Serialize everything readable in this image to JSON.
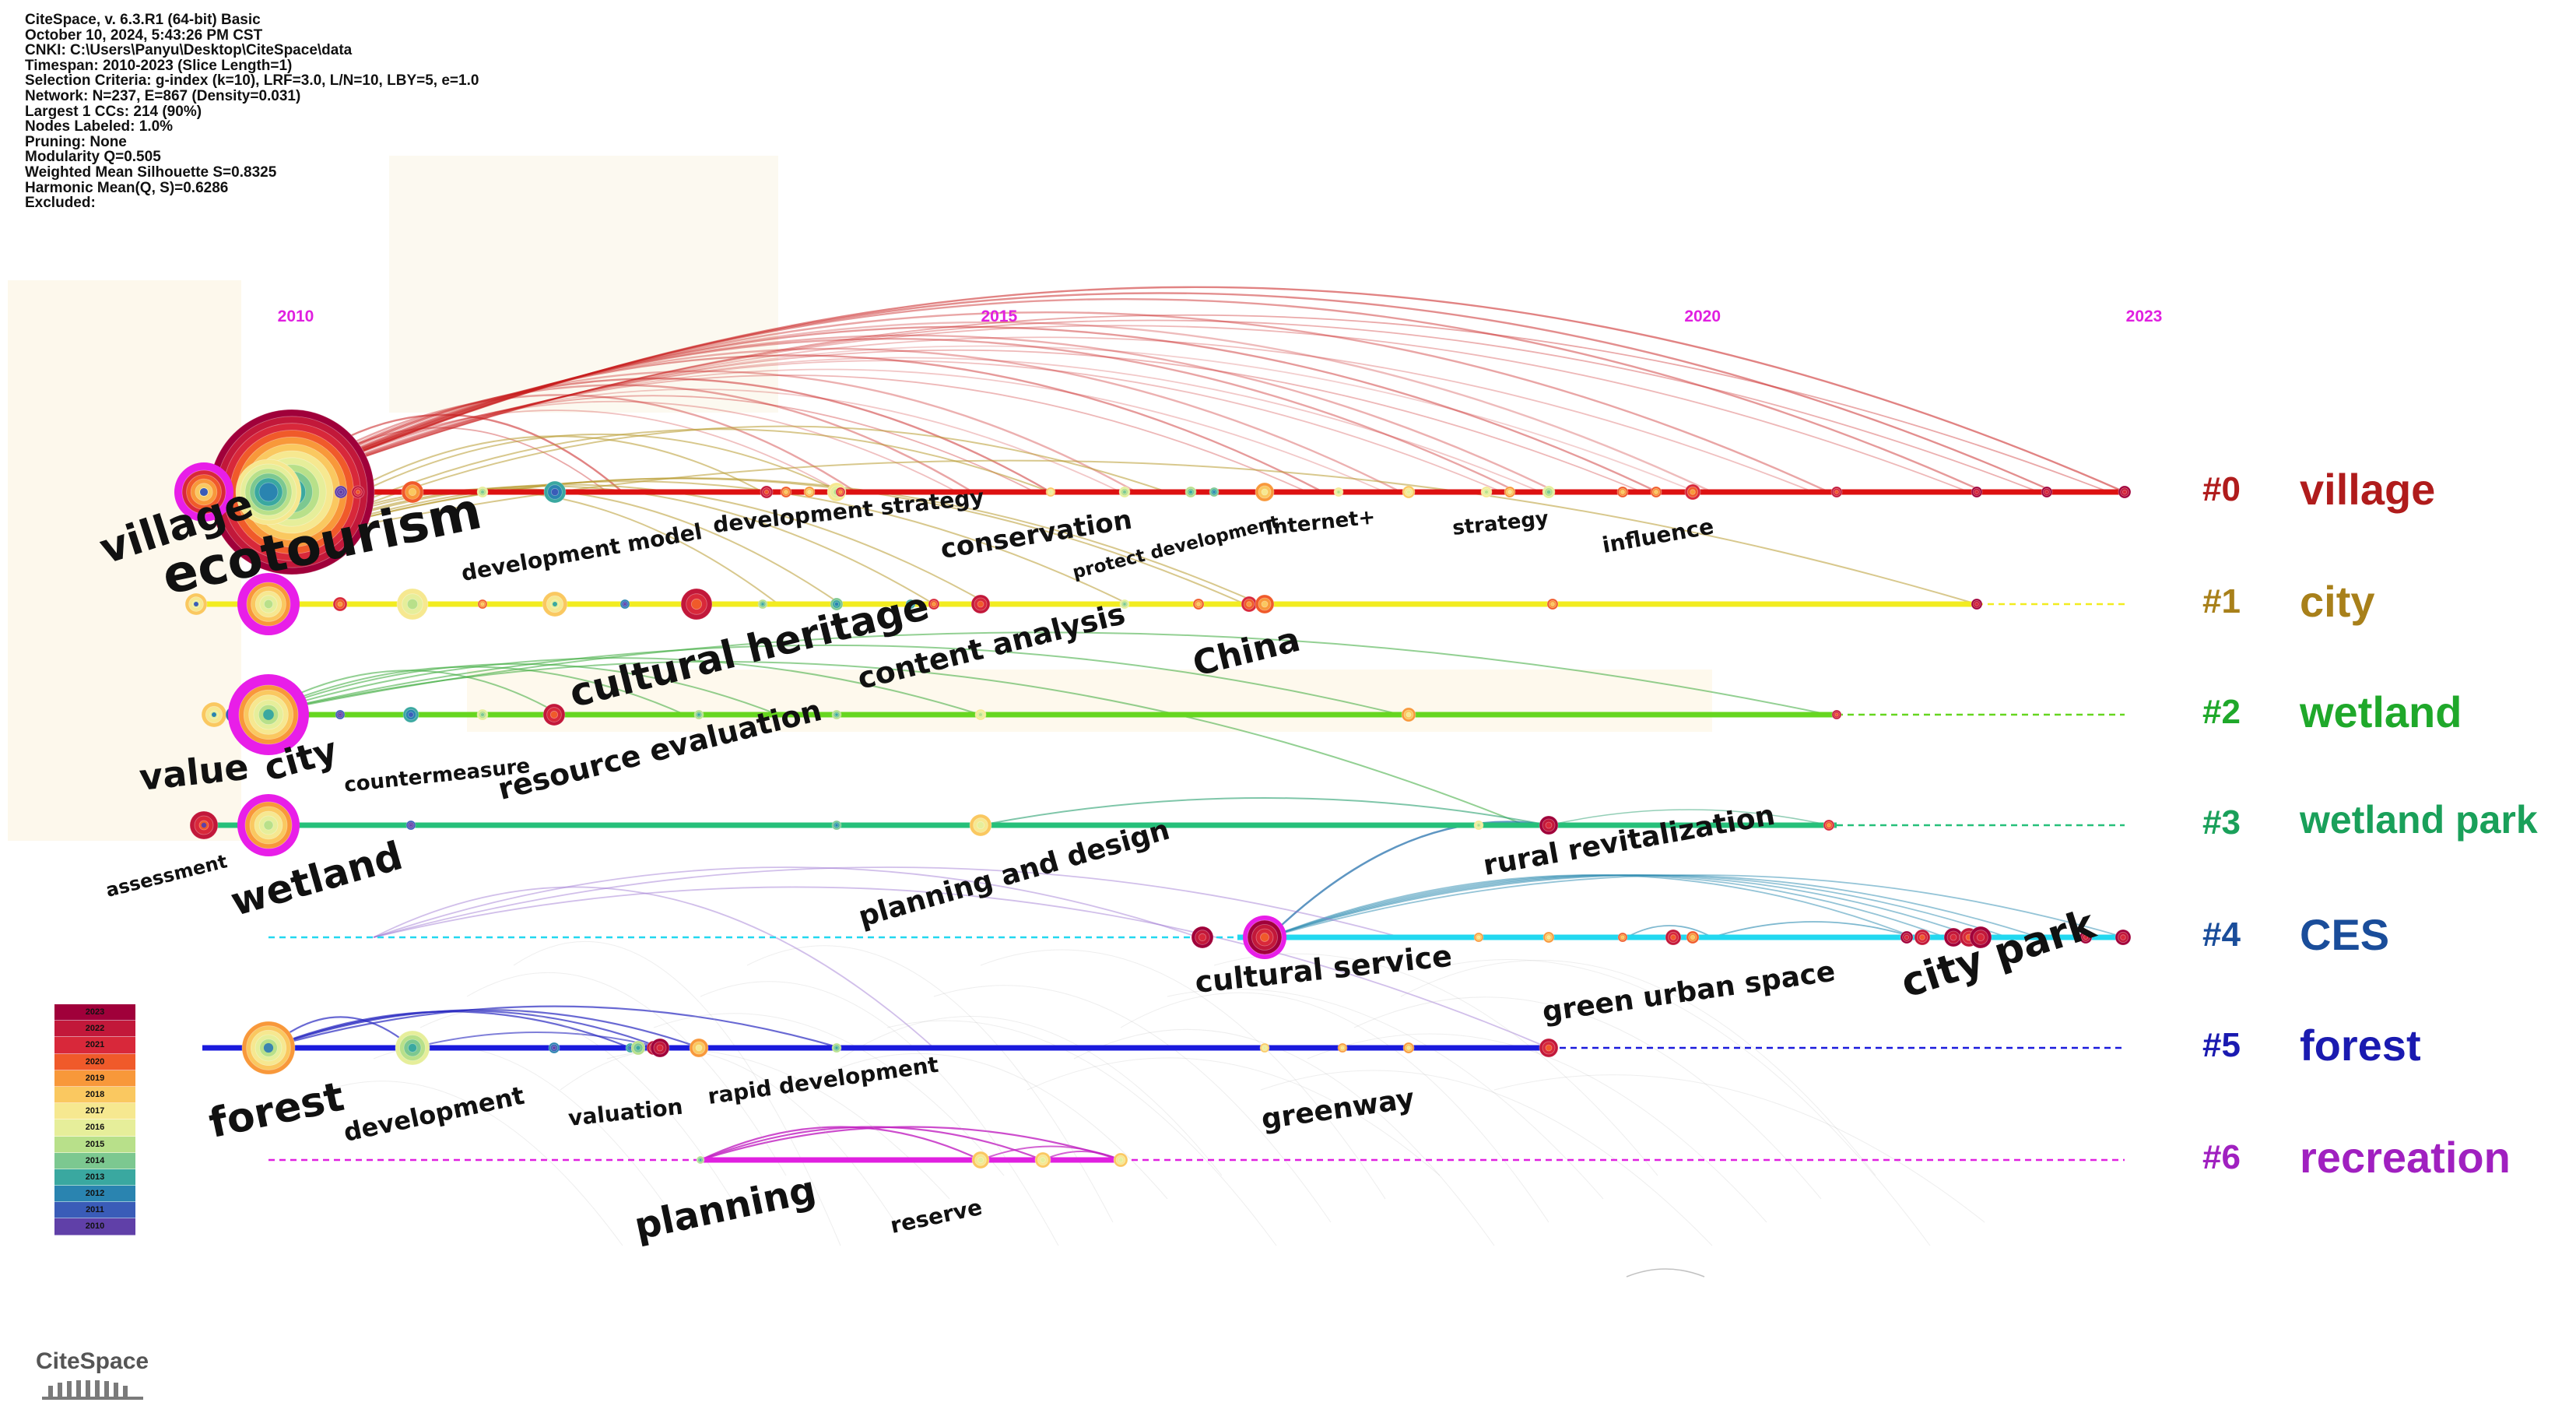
{
  "info_lines": [
    "CiteSpace, v. 6.3.R1 (64-bit) Basic",
    "October 10, 2024, 5:43:26 PM CST",
    "CNKI: C:\\Users\\Panyu\\Desktop\\CiteSpace\\data",
    "Timespan: 2010-2023 (Slice Length=1)",
    "Selection Criteria: g-index (k=10), LRF=3.0, L/N=10, LBY=5, e=1.0",
    "Network: N=237, E=867 (Density=0.031)",
    "Largest 1 CCs: 214 (90%)",
    "Nodes Labeled: 1.0%",
    "Pruning: None",
    "Modularity Q=0.505",
    "Weighted Mean Silhouette S=0.8325",
    "Harmonic Mean(Q, S)=0.6286",
    "Excluded:"
  ],
  "year_labels": [
    "2010",
    "2015",
    "2020",
    "2023"
  ],
  "clusters": [
    {
      "id": "#0",
      "name": "village",
      "color": "#b01c1c",
      "line": "#dd1111"
    },
    {
      "id": "#1",
      "name": "city",
      "color": "#a8801a",
      "line": "#f2ec20"
    },
    {
      "id": "#2",
      "name": "wetland",
      "color": "#1fa82a",
      "line": "#66d620"
    },
    {
      "id": "#3",
      "name": "wetland park",
      "color": "#1aa05a",
      "line": "#26c07a"
    },
    {
      "id": "#4",
      "name": "CES",
      "color": "#1a4d9a",
      "line": "#22d8f0"
    },
    {
      "id": "#5",
      "name": "forest",
      "color": "#1a1ab0",
      "line": "#1a1adc"
    },
    {
      "id": "#6",
      "name": "recreation",
      "color": "#a020c0",
      "line": "#e020e0"
    }
  ],
  "keywords": [
    "village",
    "ecotourism",
    "development model",
    "development strategy",
    "conservation",
    "protect development",
    "Internet+",
    "strategy",
    "influence",
    "cultural heritage",
    "content analysis",
    "China",
    "value",
    "city",
    "countermeasure",
    "resource evaluation",
    "assessment",
    "wetland",
    "planning and design",
    "rural revitalization",
    "cultural service",
    "green urban space",
    "city park",
    "forest",
    "development",
    "valuation",
    "rapid development",
    "planning",
    "reserve",
    "greenway"
  ],
  "legend_years": [
    "2023",
    "2022",
    "2021",
    "2020",
    "2019",
    "2018",
    "2017",
    "2016",
    "2015",
    "2014",
    "2013",
    "2012",
    "2011",
    "2010"
  ],
  "legend_colors": [
    "#a0003a",
    "#c2183a",
    "#d8283a",
    "#f05a2a",
    "#f8983a",
    "#fac860",
    "#f6e890",
    "#e6ee9a",
    "#b8e08a",
    "#7cc890",
    "#3aa8a0",
    "#2a84b0",
    "#3a5cb8",
    "#6040a8"
  ],
  "logo_text": "CiteSpace"
}
